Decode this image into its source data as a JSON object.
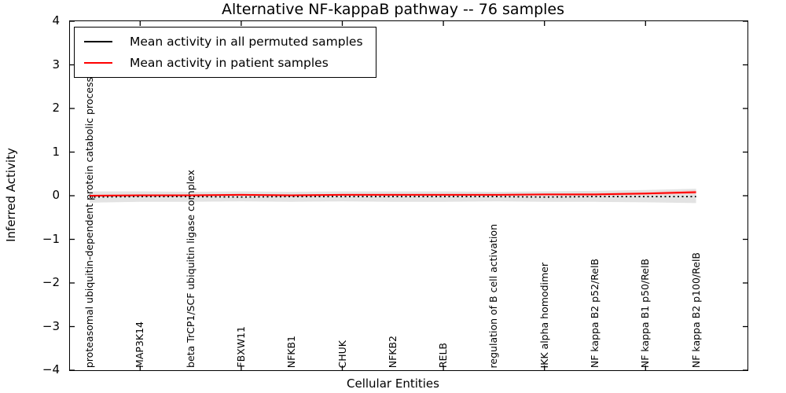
{
  "title": "Alternative NF-kappaB pathway -- 76 samples",
  "axes": {
    "xlabel": "Cellular Entities",
    "ylabel": "Inferred Activity"
  },
  "legend": {
    "items": [
      {
        "label": "Mean activity in all permuted samples",
        "color": "#000000"
      },
      {
        "label": "Mean activity in patient samples",
        "color": "#ff0000"
      }
    ]
  },
  "chart_data": {
    "type": "line",
    "title": "Alternative NF-kappaB pathway -- 76 samples",
    "xlabel": "Cellular Entities",
    "ylabel": "Inferred Activity",
    "ylim": [
      -4,
      4
    ],
    "yticks": [
      4,
      3,
      2,
      1,
      0,
      -1,
      -2,
      -3,
      -4
    ],
    "grid": false,
    "legend_position": "upper left",
    "categories": [
      "proteasomal ubiquitin-dependent protein catabolic process",
      "MAP3K14",
      "beta TrCP1/SCF ubiquitin ligase complex",
      "FBXW11",
      "NFKB1",
      "CHUK",
      "NFKB2",
      "RELB",
      "regulation of B cell activation",
      "IKK alpha homodimer",
      "NF kappa B2 p52/RelB",
      "NF kappa B1 p50/RelB",
      "NF kappa B2 p100/RelB"
    ],
    "series": [
      {
        "key": "permuted-mean-line",
        "name": "Mean activity in all permuted samples",
        "color": "#000000",
        "style": "dotted",
        "values": [
          -0.03,
          -0.02,
          -0.02,
          -0.03,
          -0.02,
          -0.02,
          -0.02,
          -0.02,
          -0.02,
          -0.03,
          -0.02,
          -0.02,
          -0.02
        ]
      },
      {
        "key": "patient-mean-line",
        "name": "Mean activity in patient samples",
        "color": "#ff0000",
        "style": "solid",
        "values": [
          0.0,
          0.01,
          0.01,
          0.02,
          0.01,
          0.02,
          0.02,
          0.02,
          0.02,
          0.03,
          0.03,
          0.05,
          0.08
        ]
      }
    ],
    "bands": [
      {
        "key": "permuted-std-band",
        "color": "#e3e3e3",
        "upper": [
          0.1,
          0.1,
          0.09,
          0.1,
          0.09,
          0.1,
          0.1,
          0.1,
          0.09,
          0.1,
          0.11,
          0.13,
          0.16
        ],
        "lower": [
          -0.16,
          -0.14,
          -0.14,
          -0.13,
          -0.14,
          -0.13,
          -0.14,
          -0.14,
          -0.13,
          -0.14,
          -0.14,
          -0.15,
          -0.17
        ]
      },
      {
        "key": "patient-std-band",
        "color": "#f2bdbd",
        "upper": [
          0.02,
          0.03,
          0.03,
          0.04,
          0.03,
          0.04,
          0.04,
          0.04,
          0.04,
          0.05,
          0.06,
          0.08,
          0.12
        ],
        "lower": [
          -0.02,
          -0.01,
          -0.01,
          0.0,
          -0.01,
          0.0,
          0.0,
          0.0,
          0.0,
          0.01,
          0.0,
          0.02,
          0.04
        ]
      }
    ]
  }
}
